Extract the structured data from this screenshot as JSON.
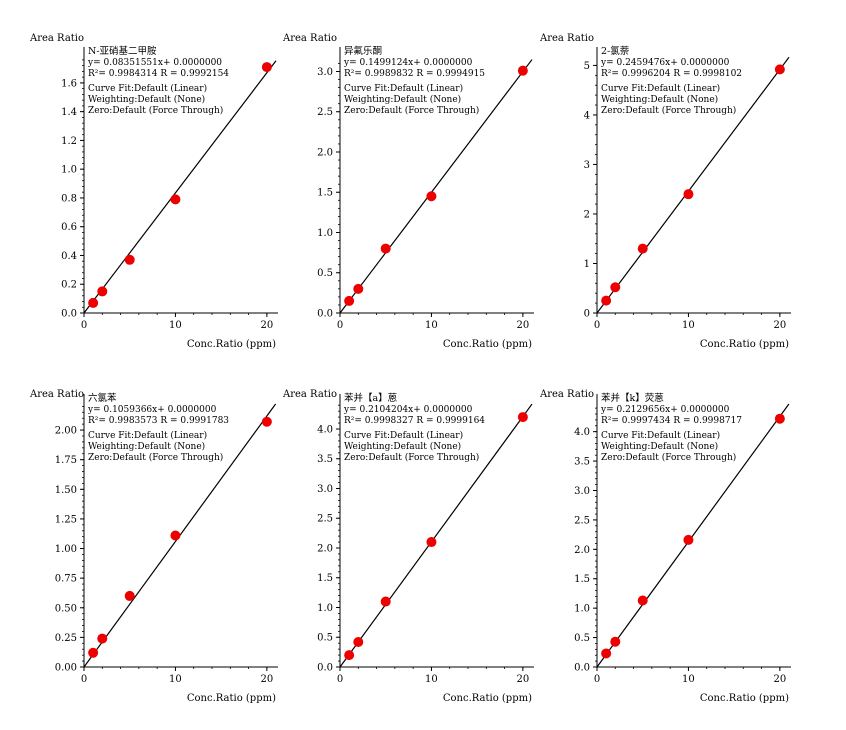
{
  "chart_data": [
    {
      "type": "scatter",
      "compound": "N-亚硝基二甲胺",
      "equation": "y= 0.08351551x+ 0.0000000",
      "fit_stats": "R²= 0.9984314   R = 0.9992154",
      "curve_fit": "Curve Fit:Default (Linear)",
      "weighting": "Weighting:Default (None)",
      "zero": "Zero:Default (Force Through)",
      "ylabel": "Area Ratio",
      "xlabel": "Conc.Ratio (ppm)",
      "slope": 0.08351551,
      "xlim": [
        0,
        21
      ],
      "ylim": [
        0,
        1.78
      ],
      "x_ticks": [
        0,
        10,
        20
      ],
      "x_tick_labels": [
        "0",
        "10",
        "20"
      ],
      "y_ticks": [
        0,
        0.2,
        0.4,
        0.6,
        0.8,
        1.0,
        1.2,
        1.4,
        1.6
      ],
      "y_tick_labels": [
        "0.0",
        "0.2",
        "0.4",
        "0.6",
        "0.8",
        "1.0",
        "1.2",
        "1.4",
        "1.6"
      ],
      "x": [
        1,
        2,
        5,
        10,
        20
      ],
      "y": [
        0.07,
        0.15,
        0.37,
        0.79,
        1.71
      ],
      "point_color": "#ee0000",
      "line_color": "#000000"
    },
    {
      "type": "scatter",
      "compound": "异氟乐酮",
      "equation": "y= 0.1499124x+ 0.0000000",
      "fit_stats": "R²= 0.9989832   R = 0.9994915",
      "curve_fit": "Curve Fit:Default (Linear)",
      "weighting": "Weighting:Default (None)",
      "zero": "Zero:Default (Force Through)",
      "ylabel": "Area Ratio",
      "xlabel": "Conc.Ratio (ppm)",
      "slope": 0.1499124,
      "xlim": [
        0,
        21
      ],
      "ylim": [
        0,
        3.18
      ],
      "x_ticks": [
        0,
        10,
        20
      ],
      "x_tick_labels": [
        "0",
        "10",
        "20"
      ],
      "y_ticks": [
        0,
        0.5,
        1.0,
        1.5,
        2.0,
        2.5,
        3.0
      ],
      "y_tick_labels": [
        "0.0",
        "0.5",
        "1.0",
        "1.5",
        "2.0",
        "2.5",
        "3.0"
      ],
      "x": [
        1,
        2,
        5,
        10,
        20
      ],
      "y": [
        0.15,
        0.3,
        0.8,
        1.45,
        3.01
      ],
      "point_color": "#ee0000",
      "line_color": "#000000"
    },
    {
      "type": "scatter",
      "compound": "2-氯萘",
      "equation": "y= 0.2459476x+ 0.0000000",
      "fit_stats": "R²= 0.9996204   R = 0.9998102",
      "curve_fit": "Curve Fit:Default (Linear)",
      "weighting": "Weighting:Default (None)",
      "zero": "Zero:Default (Force Through)",
      "ylabel": "Area Ratio",
      "xlabel": "Conc.Ratio (ppm)",
      "slope": 0.2459476,
      "xlim": [
        0,
        21
      ],
      "ylim": [
        0,
        5.17
      ],
      "x_ticks": [
        0,
        10,
        20
      ],
      "x_tick_labels": [
        "0",
        "10",
        "20"
      ],
      "y_ticks": [
        0,
        1,
        2,
        3,
        4,
        5
      ],
      "y_tick_labels": [
        "0",
        "1",
        "2",
        "3",
        "4",
        "5"
      ],
      "x": [
        1,
        2,
        5,
        10,
        20
      ],
      "y": [
        0.25,
        0.52,
        1.3,
        2.4,
        4.92
      ],
      "point_color": "#ee0000",
      "line_color": "#000000"
    },
    {
      "type": "scatter",
      "compound": "六氯苯",
      "equation": "y= 0.1059366x+ 0.0000000",
      "fit_stats": "R²= 0.9983573   R = 0.9991783",
      "curve_fit": "Curve Fit:Default (Linear)",
      "weighting": "Weighting:Default (None)",
      "zero": "Zero:Default (Force Through)",
      "ylabel": "Area Ratio",
      "xlabel": "Conc.Ratio (ppm)",
      "slope": 0.1059366,
      "xlim": [
        0,
        21
      ],
      "ylim": [
        0,
        2.22
      ],
      "x_ticks": [
        0,
        10,
        20
      ],
      "x_tick_labels": [
        "0",
        "10",
        "20"
      ],
      "y_ticks": [
        0,
        0.25,
        0.5,
        0.75,
        1.0,
        1.25,
        1.5,
        1.75,
        2.0
      ],
      "y_tick_labels": [
        "0.00",
        "0.25",
        "0.50",
        "0.75",
        "1.00",
        "1.25",
        "1.50",
        "1.75",
        "2.00"
      ],
      "x": [
        1,
        2,
        5,
        10,
        20
      ],
      "y": [
        0.12,
        0.24,
        0.6,
        1.11,
        2.07
      ],
      "point_color": "#ee0000",
      "line_color": "#000000"
    },
    {
      "type": "scatter",
      "compound": "苯并【a】蒽",
      "equation": "y= 0.2104204x+ 0.0000000",
      "fit_stats": "R²= 0.9998327   R = 0.9999164",
      "curve_fit": "Curve Fit:Default (Linear)",
      "weighting": "Weighting:Default (None)",
      "zero": "Zero:Default (Force Through)",
      "ylabel": "Area Ratio",
      "xlabel": "Conc.Ratio (ppm)",
      "slope": 0.2104204,
      "xlim": [
        0,
        21
      ],
      "ylim": [
        0,
        4.42
      ],
      "x_ticks": [
        0,
        10,
        20
      ],
      "x_tick_labels": [
        "0",
        "10",
        "20"
      ],
      "y_ticks": [
        0,
        0.5,
        1.0,
        1.5,
        2.0,
        2.5,
        3.0,
        3.5,
        4.0
      ],
      "y_tick_labels": [
        "0.0",
        "0.5",
        "1.0",
        "1.5",
        "2.0",
        "2.5",
        "3.0",
        "3.5",
        "4.0"
      ],
      "x": [
        1,
        2,
        5,
        10,
        20
      ],
      "y": [
        0.2,
        0.42,
        1.1,
        2.1,
        4.2
      ],
      "point_color": "#ee0000",
      "line_color": "#000000"
    },
    {
      "type": "scatter",
      "compound": "苯并【k】荧蒽",
      "equation": "y= 0.2129656x+ 0.0000000",
      "fit_stats": "R²= 0.9997434   R = 0.9998717",
      "curve_fit": "Curve Fit:Default (Linear)",
      "weighting": "Weighting:Default (None)",
      "zero": "Zero:Default (Force Through)",
      "ylabel": "Area Ratio",
      "xlabel": "Conc.Ratio (ppm)",
      "slope": 0.2129656,
      "xlim": [
        0,
        21
      ],
      "ylim": [
        0,
        4.47
      ],
      "x_ticks": [
        0,
        10,
        20
      ],
      "x_tick_labels": [
        "0",
        "10",
        "20"
      ],
      "y_ticks": [
        0,
        0.5,
        1.0,
        1.5,
        2.0,
        2.5,
        3.0,
        3.5,
        4.0
      ],
      "y_tick_labels": [
        "0.0",
        "0.5",
        "1.0",
        "1.5",
        "2.0",
        "2.5",
        "3.0",
        "3.5",
        "4.0"
      ],
      "x": [
        1,
        2,
        5,
        10,
        20
      ],
      "y": [
        0.23,
        0.43,
        1.13,
        2.16,
        4.22
      ],
      "point_color": "#ee0000",
      "line_color": "#000000"
    }
  ]
}
